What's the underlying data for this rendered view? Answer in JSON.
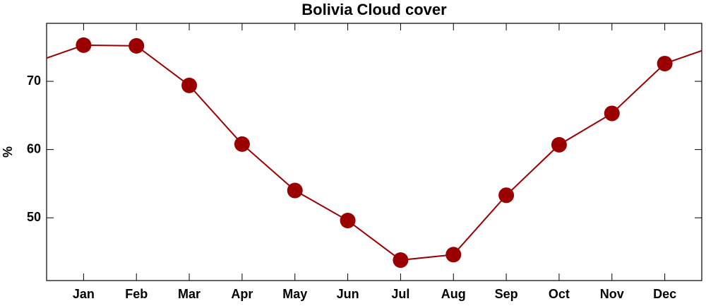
{
  "chart_data": {
    "type": "line",
    "title": "Bolivia Cloud cover",
    "y_label": "%",
    "categories": [
      "Jan",
      "Feb",
      "Mar",
      "Apr",
      "May",
      "Jun",
      "Jul",
      "Aug",
      "Sep",
      "Oct",
      "Nov",
      "Dec"
    ],
    "values": [
      75.3,
      75.2,
      69.4,
      60.8,
      54.0,
      49.6,
      43.8,
      44.6,
      53.3,
      60.7,
      65.3,
      72.6
    ],
    "color": "#9b0000",
    "ylim": [
      40.8,
      78.5
    ],
    "yticks": [
      50,
      60,
      70
    ]
  }
}
